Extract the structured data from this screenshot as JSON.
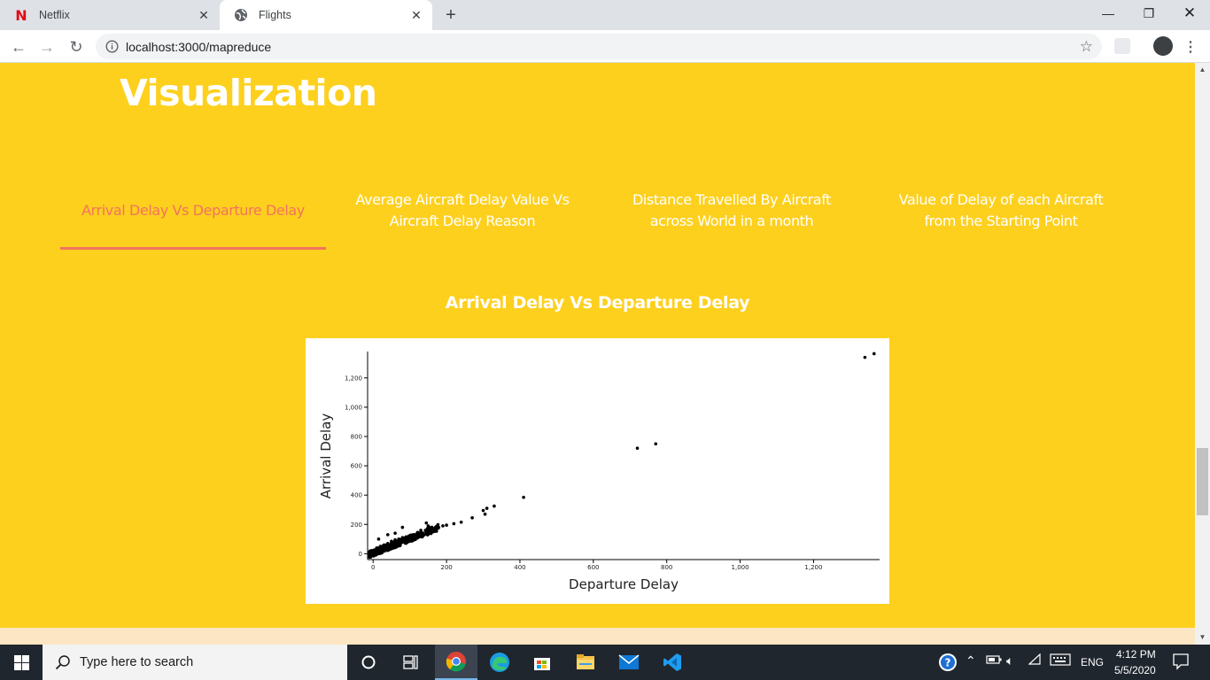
{
  "browser": {
    "tabs": [
      {
        "title": "Netflix",
        "icon": "netflix-icon",
        "active": false
      },
      {
        "title": "Flights",
        "icon": "globe-icon",
        "active": true
      }
    ],
    "url": "localhost:3000/mapreduce"
  },
  "page": {
    "heading": "Visualization",
    "viz_tabs": [
      {
        "label_line1": "Arrival Delay Vs Departure Delay",
        "label_line2": "",
        "active": true
      },
      {
        "label_line1": "Average Aircraft Delay Value Vs",
        "label_line2": "Aircraft Delay Reason",
        "active": false
      },
      {
        "label_line1": "Distance Travelled By Aircraft",
        "label_line2": "across World in a month",
        "active": false
      },
      {
        "label_line1": "Value of Delay of each Aircraft",
        "label_line2": "from the Starting Point",
        "active": false
      }
    ],
    "chart_heading": "Arrival Delay Vs Departure Delay",
    "colors": {
      "accent": "#f3735d",
      "background": "#fdd01e",
      "text": "#ffffff"
    }
  },
  "chart_data": {
    "type": "scatter",
    "title": "",
    "xlabel": "Departure Delay",
    "ylabel": "Arrival Delay",
    "xlim": [
      -15,
      1380
    ],
    "ylim": [
      -40,
      1380
    ],
    "xticks": [
      0,
      200,
      400,
      600,
      800,
      1000,
      1200
    ],
    "xtick_labels": [
      "0",
      "200",
      "400",
      "600",
      "800",
      "1,000",
      "1,200"
    ],
    "yticks": [
      0,
      200,
      400,
      600,
      800,
      1000,
      1200
    ],
    "ytick_labels": [
      "0",
      "200",
      "400",
      "600",
      "800",
      "1,000",
      "1,200"
    ],
    "grid": false,
    "points_explicit": [
      [
        1340,
        1340
      ],
      [
        1365,
        1365
      ],
      [
        720,
        720
      ],
      [
        770,
        750
      ],
      [
        410,
        385
      ],
      [
        330,
        325
      ],
      [
        310,
        310
      ],
      [
        300,
        295
      ],
      [
        305,
        270
      ],
      [
        270,
        245
      ],
      [
        240,
        215
      ],
      [
        220,
        205
      ],
      [
        200,
        195
      ],
      [
        190,
        190
      ],
      [
        170,
        175
      ],
      [
        160,
        170
      ],
      [
        150,
        165
      ],
      [
        150,
        190
      ],
      [
        145,
        210
      ],
      [
        130,
        160
      ],
      [
        120,
        140
      ],
      [
        110,
        130
      ],
      [
        100,
        120
      ],
      [
        90,
        115
      ],
      [
        80,
        110
      ],
      [
        70,
        100
      ],
      [
        60,
        95
      ],
      [
        50,
        85
      ],
      [
        40,
        70
      ],
      [
        30,
        60
      ],
      [
        20,
        50
      ],
      [
        10,
        40
      ],
      [
        5,
        20
      ],
      [
        0,
        10
      ],
      [
        -5,
        0
      ],
      [
        -10,
        -10
      ],
      [
        15,
        100
      ],
      [
        40,
        130
      ],
      [
        80,
        180
      ],
      [
        60,
        140
      ]
    ],
    "cluster": {
      "count": 420,
      "x_range": [
        -10,
        180
      ],
      "slope": 0.98,
      "spread": 22
    }
  },
  "taskbar": {
    "search_placeholder": "Type here to search",
    "language": "ENG",
    "time": "4:12 PM",
    "date": "5/5/2020"
  }
}
